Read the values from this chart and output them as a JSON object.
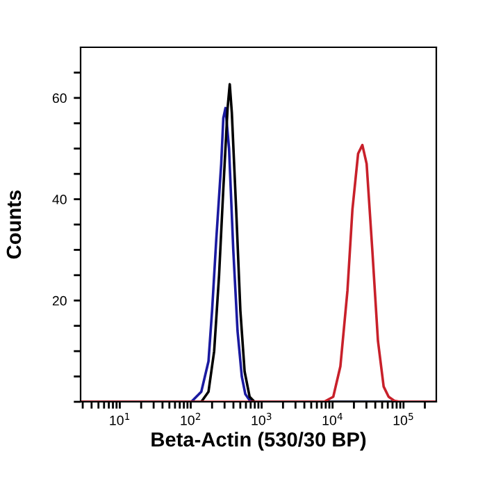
{
  "chart_data": {
    "type": "line",
    "xlabel": "Beta-Actin (530/30 BP)",
    "ylabel": "Counts",
    "log": "x",
    "grid": false,
    "legend": false,
    "marker": "none",
    "line_style": "solid",
    "xlim": [
      2.8,
      290000
    ],
    "ylim": [
      0,
      70
    ],
    "xticks": [
      {
        "value": 3,
        "label": null
      },
      {
        "value": 4,
        "label": null
      },
      {
        "value": 5,
        "label": null
      },
      {
        "value": 6,
        "label": null
      },
      {
        "value": 7,
        "label": null
      },
      {
        "value": 8,
        "label": null
      },
      {
        "value": 9,
        "label": null
      },
      {
        "value": 10,
        "label": "10$^{1}$"
      },
      {
        "value": 20,
        "label": null
      },
      {
        "value": 30,
        "label": null
      },
      {
        "value": 40,
        "label": null
      },
      {
        "value": 50,
        "label": null
      },
      {
        "value": 60,
        "label": null
      },
      {
        "value": 70,
        "label": null
      },
      {
        "value": 80,
        "label": null
      },
      {
        "value": 90,
        "label": null
      },
      {
        "value": 100,
        "label": "10$^{2}$"
      },
      {
        "value": 200,
        "label": null
      },
      {
        "value": 300,
        "label": null
      },
      {
        "value": 400,
        "label": null
      },
      {
        "value": 500,
        "label": null
      },
      {
        "value": 600,
        "label": null
      },
      {
        "value": 700,
        "label": null
      },
      {
        "value": 800,
        "label": null
      },
      {
        "value": 900,
        "label": null
      },
      {
        "value": 1000,
        "label": "10$^{3}$"
      },
      {
        "value": 2000,
        "label": null
      },
      {
        "value": 3000,
        "label": null
      },
      {
        "value": 4000,
        "label": null
      },
      {
        "value": 5000,
        "label": null
      },
      {
        "value": 6000,
        "label": null
      },
      {
        "value": 7000,
        "label": null
      },
      {
        "value": 8000,
        "label": null
      },
      {
        "value": 9000,
        "label": null
      },
      {
        "value": 10000,
        "label": "10$^{4}$"
      },
      {
        "value": 20000,
        "label": null
      },
      {
        "value": 30000,
        "label": null
      },
      {
        "value": 40000,
        "label": null
      },
      {
        "value": 50000,
        "label": null
      },
      {
        "value": 60000,
        "label": null
      },
      {
        "value": 70000,
        "label": null
      },
      {
        "value": 80000,
        "label": null
      },
      {
        "value": 90000,
        "label": null
      },
      {
        "value": 100000,
        "label": "10$^{5}$"
      },
      {
        "value": 200000,
        "label": null
      }
    ],
    "yticks": [
      {
        "value": 0,
        "label": null
      },
      {
        "value": 5,
        "label": null
      },
      {
        "value": 10,
        "label": null
      },
      {
        "value": 15,
        "label": null
      },
      20,
      {
        "value": 25,
        "label": null
      },
      {
        "value": 30,
        "label": null
      },
      {
        "value": 35,
        "label": null
      },
      40,
      {
        "value": 45,
        "label": null
      },
      {
        "value": 50,
        "label": null
      },
      {
        "value": 55,
        "label": null
      },
      60,
      {
        "value": 65,
        "label": null
      }
    ],
    "series": [
      {
        "color": "#1a1aa0",
        "x": [
          2.8,
          102,
          141,
          178,
          200,
          229,
          269,
          288,
          309,
          347,
          398,
          457,
          525,
          589,
          676,
          776,
          290000
        ],
        "values": [
          0,
          0,
          2,
          8,
          18,
          32,
          47,
          56,
          58,
          50,
          30,
          14,
          5,
          1.5,
          0.3,
          0,
          0
        ]
      },
      {
        "color": "#000000",
        "x": [
          2.8,
          141,
          178,
          214,
          251,
          288,
          331,
          355,
          380,
          437,
          501,
          575,
          676,
          794,
          290000
        ],
        "values": [
          0,
          0,
          2,
          10,
          25,
          42,
          58,
          62.7,
          57,
          38,
          18,
          6,
          1,
          0,
          0
        ]
      },
      {
        "color": "#c8202a",
        "x": [
          2.8,
          7586,
          10233,
          12882,
          16218,
          19055,
          22909,
          26303,
          30200,
          36308,
          43652,
          52481,
          61660,
          74131,
          89125,
          290000
        ],
        "values": [
          0,
          0,
          1,
          7,
          22,
          38,
          49,
          50.7,
          47,
          30,
          12,
          3,
          1,
          0.2,
          0,
          0
        ]
      }
    ]
  }
}
